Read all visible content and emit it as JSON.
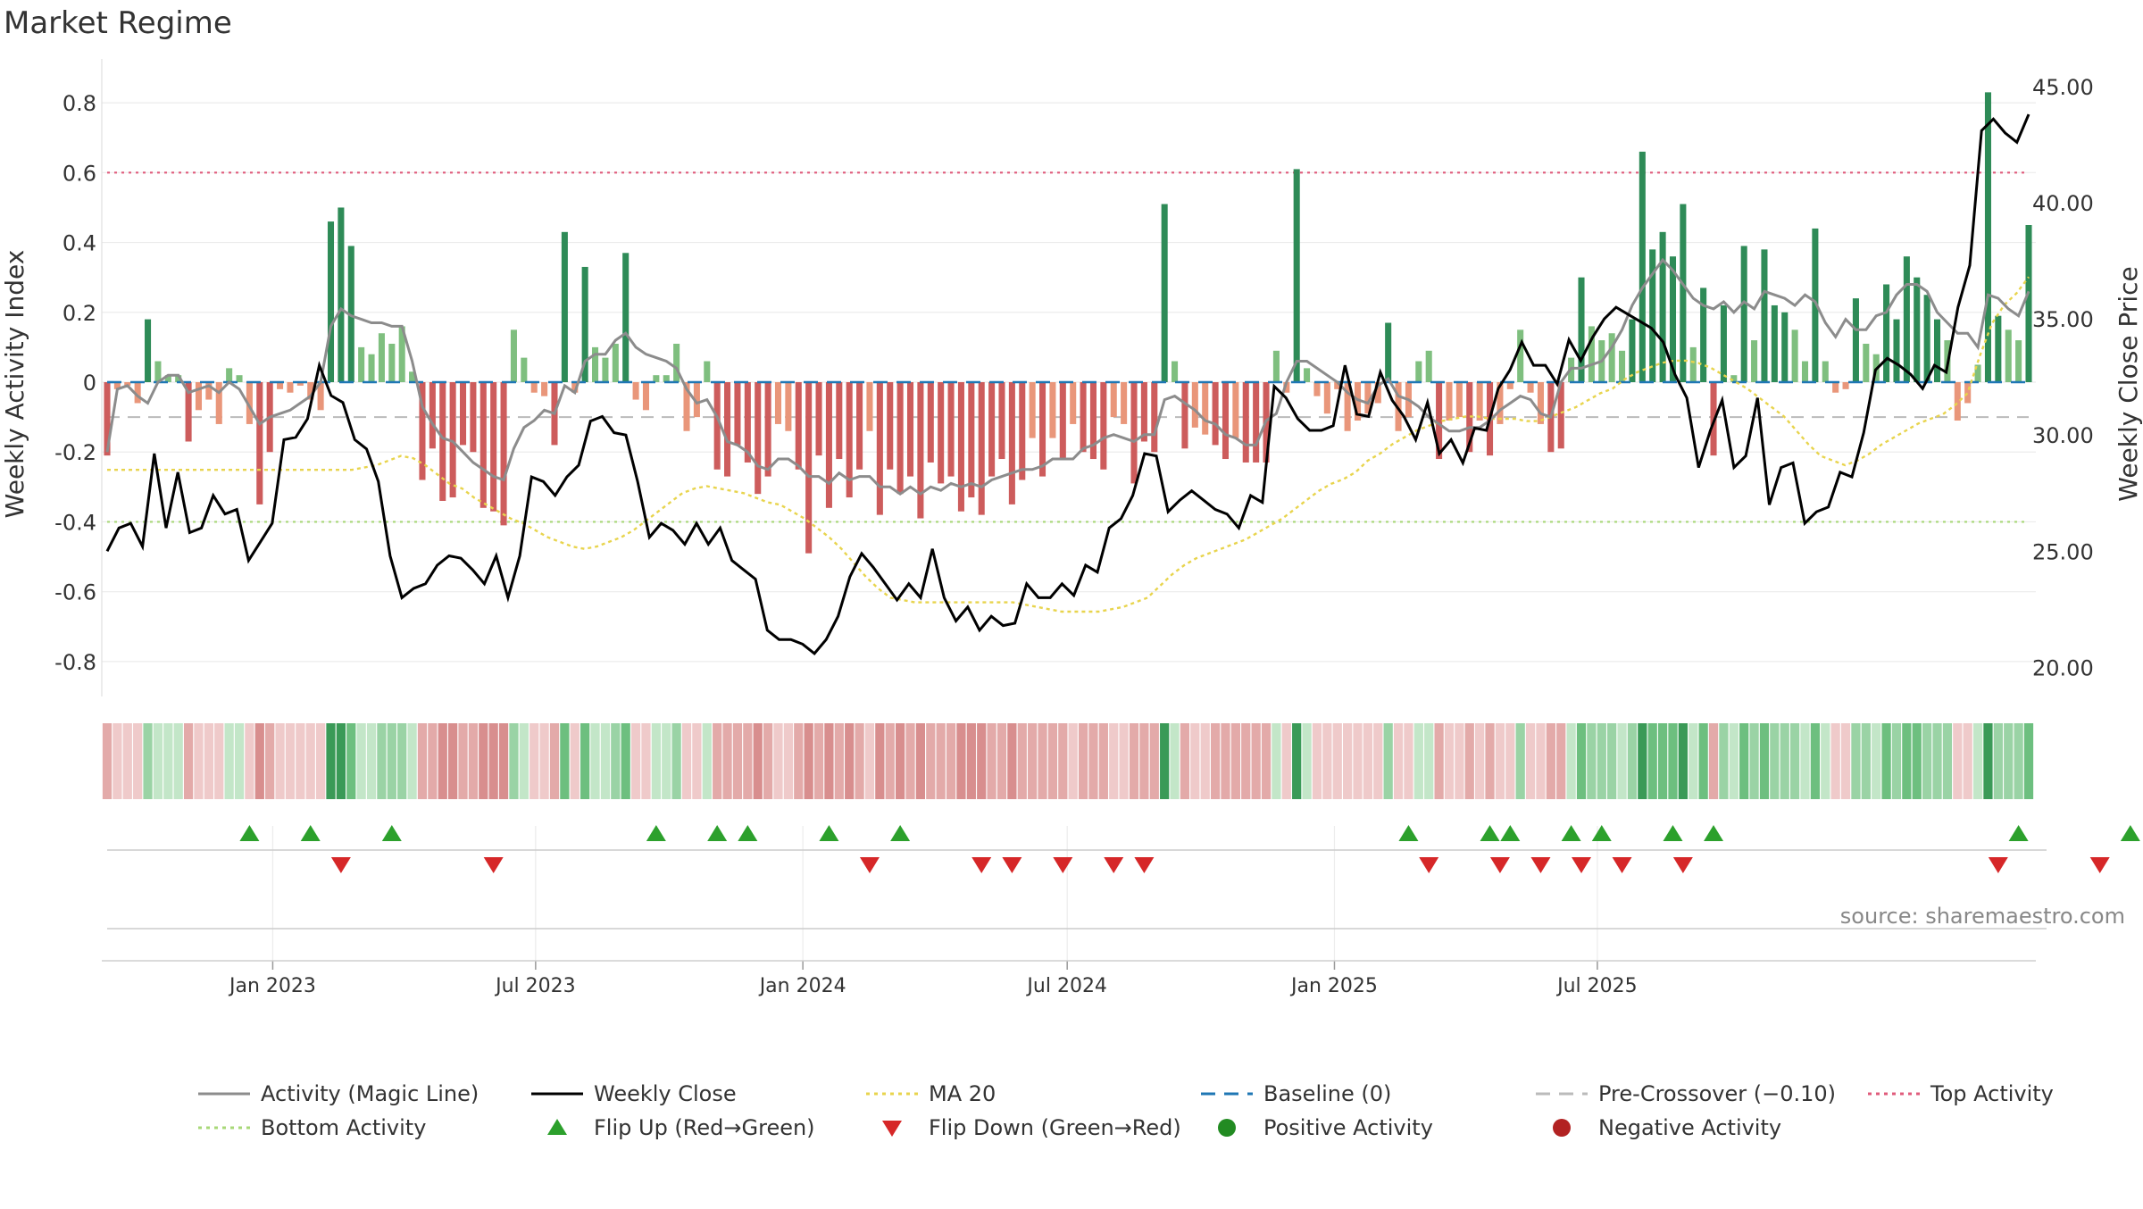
{
  "title": "Market Regime",
  "source": "source: sharemaestro.com",
  "colors": {
    "posDark": "#2e8b57",
    "posLight": "#7fbf7f",
    "negDark": "#cd5c5c",
    "negLight": "#e9967a",
    "magic": "#8c8c8c",
    "close": "#000000",
    "ma": "#e8d44d",
    "baseline": "#1f77b4",
    "precross": "#bbbbbb",
    "top": "#e05c7c",
    "bottom": "#a8d878",
    "flipUp": "#2ca02c",
    "flipDown": "#d62728",
    "posDot": "#228b22",
    "negDot": "#b22222"
  },
  "chart_data": {
    "type": "bar",
    "x_start": "2022-09-09",
    "x_step_days": 7,
    "left_axis": {
      "label": "Weekly Activity Index",
      "ylim": [
        -0.9,
        0.9
      ],
      "ticks": [
        -0.8,
        -0.6,
        -0.4,
        -0.2,
        0,
        0.2,
        0.4,
        0.6,
        0.8
      ]
    },
    "right_axis": {
      "label": "Weekly Close Price",
      "ylim": [
        18.75,
        45.8
      ],
      "ticks": [
        "20.00",
        "25.00",
        "30.00",
        "35.00",
        "40.00",
        "45.00"
      ]
    },
    "x_ticks": [
      {
        "label": "Jan 2023",
        "date": "2023-01-01"
      },
      {
        "label": "Jul 2023",
        "date": "2023-07-01"
      },
      {
        "label": "Jan 2024",
        "date": "2024-01-01"
      },
      {
        "label": "Jul 2024",
        "date": "2024-07-01"
      },
      {
        "label": "Jan 2025",
        "date": "2025-01-01"
      },
      {
        "label": "Jul 2025",
        "date": "2025-07-01"
      }
    ],
    "reference_lines": {
      "baseline": 0,
      "pre_crossover": -0.1,
      "top_activity": 0.6,
      "bottom_activity": -0.4
    },
    "series": [
      {
        "name": "Activity",
        "kind": "bar",
        "values": [
          -0.21,
          -0.02,
          -0.01,
          -0.06,
          0.18,
          0.06,
          0.02,
          0.02,
          -0.17,
          -0.08,
          -0.05,
          -0.12,
          0.04,
          0.02,
          -0.12,
          -0.35,
          -0.2,
          -0.02,
          -0.03,
          -0.01,
          -0.05,
          -0.08,
          0.46,
          0.5,
          0.39,
          0.1,
          0.08,
          0.14,
          0.11,
          0.16,
          0.03,
          -0.28,
          -0.19,
          -0.34,
          -0.33,
          -0.18,
          -0.2,
          -0.36,
          -0.37,
          -0.41,
          0.15,
          0.07,
          -0.03,
          -0.04,
          -0.18,
          0.43,
          -0.03,
          0.33,
          0.1,
          0.07,
          0.11,
          0.37,
          -0.05,
          -0.08,
          0.02,
          0.02,
          0.11,
          -0.14,
          -0.1,
          0.06,
          -0.25,
          -0.27,
          -0.18,
          -0.23,
          -0.32,
          -0.27,
          -0.12,
          -0.14,
          -0.25,
          -0.49,
          -0.21,
          -0.36,
          -0.22,
          -0.33,
          -0.25,
          -0.14,
          -0.38,
          -0.25,
          -0.32,
          -0.27,
          -0.39,
          -0.23,
          -0.29,
          -0.27,
          -0.37,
          -0.33,
          -0.38,
          -0.27,
          -0.22,
          -0.35,
          -0.28,
          -0.16,
          -0.27,
          -0.16,
          -0.22,
          -0.12,
          -0.2,
          -0.22,
          -0.25,
          -0.1,
          -0.12,
          -0.29,
          -0.17,
          -0.2,
          0.51,
          0.06,
          -0.19,
          -0.13,
          -0.15,
          -0.18,
          -0.22,
          -0.16,
          -0.23,
          -0.23,
          -0.23,
          0.09,
          -0.03,
          0.61,
          0.04,
          -0.04,
          -0.09,
          -0.02,
          -0.14,
          -0.11,
          -0.09,
          -0.06,
          0.17,
          -0.14,
          -0.1,
          0.06,
          0.09,
          -0.22,
          -0.11,
          -0.1,
          -0.2,
          -0.11,
          -0.21,
          -0.12,
          -0.02,
          0.15,
          -0.03,
          -0.12,
          -0.2,
          -0.19,
          0.07,
          0.3,
          0.16,
          0.12,
          0.14,
          0.09,
          0.18,
          0.66,
          0.38,
          0.43,
          0.36,
          0.51,
          0.1,
          0.27,
          -0.21,
          0.22,
          0.02,
          0.39,
          0.12,
          0.38,
          0.22,
          0.2,
          0.15,
          0.06,
          0.44,
          0.06,
          -0.03,
          -0.02,
          0.24,
          0.11,
          0.08,
          0.28,
          0.18,
          0.36,
          0.3,
          0.25,
          0.18,
          0.12,
          -0.11,
          -0.06,
          0.05,
          0.83,
          0.19,
          0.15,
          0.12,
          0.45
        ]
      },
      {
        "name": "Activity (Magic Line)",
        "kind": "line",
        "values": [
          -0.2,
          -0.02,
          -0.01,
          -0.04,
          -0.06,
          0.0,
          0.02,
          0.02,
          -0.03,
          -0.02,
          -0.01,
          -0.03,
          0.0,
          -0.02,
          -0.07,
          -0.12,
          -0.1,
          -0.09,
          -0.08,
          -0.06,
          -0.04,
          0.0,
          0.16,
          0.21,
          0.19,
          0.18,
          0.17,
          0.17,
          0.16,
          0.16,
          0.06,
          -0.07,
          -0.12,
          -0.16,
          -0.17,
          -0.2,
          -0.23,
          -0.25,
          -0.27,
          -0.28,
          -0.19,
          -0.13,
          -0.11,
          -0.08,
          -0.09,
          -0.01,
          -0.03,
          0.06,
          0.08,
          0.08,
          0.12,
          0.14,
          0.1,
          0.08,
          0.07,
          0.06,
          0.04,
          -0.02,
          -0.06,
          -0.05,
          -0.1,
          -0.17,
          -0.18,
          -0.2,
          -0.24,
          -0.25,
          -0.22,
          -0.22,
          -0.24,
          -0.27,
          -0.27,
          -0.29,
          -0.26,
          -0.28,
          -0.27,
          -0.27,
          -0.3,
          -0.3,
          -0.32,
          -0.3,
          -0.32,
          -0.3,
          -0.31,
          -0.29,
          -0.3,
          -0.29,
          -0.3,
          -0.28,
          -0.27,
          -0.26,
          -0.25,
          -0.25,
          -0.24,
          -0.22,
          -0.22,
          -0.22,
          -0.19,
          -0.18,
          -0.16,
          -0.15,
          -0.16,
          -0.17,
          -0.15,
          -0.15,
          -0.05,
          -0.04,
          -0.06,
          -0.08,
          -0.11,
          -0.12,
          -0.15,
          -0.16,
          -0.18,
          -0.18,
          -0.11,
          -0.09,
          0.0,
          0.06,
          0.06,
          0.04,
          0.02,
          0.0,
          -0.03,
          -0.05,
          -0.06,
          -0.01,
          0.01,
          -0.04,
          -0.05,
          -0.07,
          -0.1,
          -0.12,
          -0.14,
          -0.14,
          -0.13,
          -0.13,
          -0.11,
          -0.08,
          -0.06,
          -0.04,
          -0.05,
          -0.09,
          -0.1,
          0.0,
          0.04,
          0.04,
          0.05,
          0.06,
          0.1,
          0.15,
          0.22,
          0.27,
          0.31,
          0.35,
          0.32,
          0.28,
          0.24,
          0.22,
          0.21,
          0.23,
          0.2,
          0.23,
          0.21,
          0.26,
          0.25,
          0.24,
          0.22,
          0.25,
          0.23,
          0.17,
          0.13,
          0.18,
          0.15,
          0.15,
          0.19,
          0.2,
          0.25,
          0.28,
          0.28,
          0.26,
          0.2,
          0.17,
          0.14,
          0.14,
          0.1,
          0.25,
          0.24,
          0.21,
          0.19,
          0.26
        ]
      },
      {
        "name": "Weekly Close",
        "kind": "line",
        "axis": "right",
        "values": [
          25.0,
          26.0,
          26.2,
          25.2,
          29.2,
          26.0,
          28.4,
          25.8,
          26.0,
          27.4,
          26.6,
          26.8,
          24.6,
          25.4,
          26.2,
          29.8,
          29.9,
          30.7,
          33.0,
          31.7,
          31.4,
          29.8,
          29.4,
          28.0,
          24.8,
          23.0,
          23.4,
          23.6,
          24.4,
          24.8,
          24.7,
          24.2,
          23.6,
          24.8,
          23.0,
          24.8,
          28.2,
          28.0,
          27.4,
          28.2,
          28.7,
          30.6,
          30.8,
          30.1,
          30.0,
          28.0,
          25.6,
          26.2,
          25.9,
          25.3,
          26.2,
          25.3,
          26.0,
          24.6,
          24.2,
          23.8,
          21.6,
          21.2,
          21.2,
          21.0,
          20.6,
          21.2,
          22.2,
          23.9,
          24.9,
          24.3,
          23.6,
          22.9,
          23.6,
          23.0,
          25.1,
          23.0,
          22.0,
          22.6,
          21.6,
          22.2,
          21.8,
          21.9,
          23.6,
          23.0,
          23.0,
          23.6,
          23.1,
          24.4,
          24.1,
          26.0,
          26.4,
          27.4,
          29.2,
          29.1,
          26.7,
          27.2,
          27.6,
          27.2,
          26.8,
          26.6,
          26.0,
          27.4,
          27.1,
          32.1,
          31.6,
          30.7,
          30.2,
          30.2,
          30.4,
          33.0,
          30.9,
          30.8,
          32.7,
          31.5,
          30.8,
          29.8,
          31.4,
          29.2,
          29.8,
          28.8,
          30.3,
          30.2,
          32.0,
          32.8,
          34.0,
          33.0,
          33.0,
          32.2,
          34.1,
          33.2,
          34.2,
          35.0,
          35.5,
          35.2,
          34.9,
          34.6,
          34.0,
          32.6,
          31.6,
          28.6,
          30.2,
          31.5,
          28.6,
          29.1,
          31.6,
          27.0,
          28.6,
          28.8,
          26.2,
          26.7,
          26.9,
          28.4,
          28.2,
          30.1,
          32.8,
          33.3,
          33.0,
          32.6,
          32.0,
          33.0,
          32.7,
          35.5,
          37.3,
          43.1,
          43.6,
          43.0,
          42.6,
          43.8
        ]
      },
      {
        "name": "MA 20",
        "kind": "line",
        "axis": "right",
        "values": [
          28.5,
          28.5,
          28.5,
          28.5,
          28.5,
          28.5,
          28.5,
          28.5,
          28.5,
          28.5,
          28.5,
          28.5,
          28.5,
          28.5,
          28.5,
          28.5,
          28.5,
          28.5,
          28.5,
          28.5,
          28.5,
          28.6,
          28.7,
          28.9,
          29.1,
          29.0,
          28.7,
          28.3,
          27.9,
          27.7,
          27.3,
          27.0,
          26.7,
          26.4,
          26.2,
          25.9,
          25.6,
          25.4,
          25.2,
          25.1,
          25.2,
          25.4,
          25.6,
          25.9,
          26.3,
          26.7,
          27.1,
          27.5,
          27.7,
          27.8,
          27.7,
          27.6,
          27.5,
          27.3,
          27.1,
          27.0,
          26.7,
          26.4,
          26.0,
          25.6,
          25.1,
          24.5,
          23.9,
          23.4,
          23.0,
          22.9,
          22.8,
          22.8,
          22.8,
          22.8,
          22.8,
          22.8,
          22.8,
          22.8,
          22.8,
          22.7,
          22.6,
          22.5,
          22.4,
          22.4,
          22.4,
          22.4,
          22.5,
          22.6,
          22.8,
          23.0,
          23.5,
          24.0,
          24.4,
          24.7,
          24.9,
          25.1,
          25.3,
          25.5,
          25.8,
          26.1,
          26.4,
          26.8,
          27.2,
          27.6,
          27.9,
          28.1,
          28.4,
          28.9,
          29.2,
          29.6,
          29.9,
          30.2,
          30.4,
          30.6,
          30.7,
          30.8,
          30.8,
          30.7,
          30.7,
          30.7,
          30.6,
          30.6,
          30.8,
          31.0,
          31.2,
          31.5,
          31.8,
          32.0,
          32.4,
          32.7,
          32.9,
          33.1,
          33.2,
          33.2,
          33.1,
          32.9,
          32.6,
          32.3,
          32.0,
          31.6,
          31.2,
          30.8,
          30.2,
          29.6,
          29.1,
          28.9,
          28.7,
          28.9,
          29.2,
          29.6,
          29.9,
          30.2,
          30.5,
          30.7,
          30.9,
          31.3,
          31.8,
          33.4,
          34.8,
          35.6,
          36.1,
          36.8
        ]
      }
    ],
    "flip_up_indices": [
      14,
      20,
      28,
      54,
      60,
      63,
      71,
      78,
      128,
      136,
      138,
      144,
      147,
      154,
      158,
      188,
      199
    ],
    "flip_down_indices": [
      23,
      38,
      75,
      86,
      89,
      94,
      99,
      102,
      130,
      137,
      141,
      145,
      149,
      155,
      186,
      196
    ]
  },
  "legend": {
    "items": [
      {
        "label": "Activity (Magic Line)",
        "type": "line",
        "color": "#8c8c8c"
      },
      {
        "label": "Weekly Close",
        "type": "line",
        "color": "#000000"
      },
      {
        "label": "MA 20",
        "type": "dotted",
        "color": "#e8d44d"
      },
      {
        "label": "Baseline (0)",
        "type": "dashed",
        "color": "#1f77b4"
      },
      {
        "label": "Pre-Crossover (−0.10)",
        "type": "dashed",
        "color": "#bbbbbb"
      },
      {
        "label": "Top Activity",
        "type": "dotted",
        "color": "#e05c7c"
      },
      {
        "label": "Bottom Activity",
        "type": "dotted",
        "color": "#a8d878"
      },
      {
        "label": "Flip Up (Red→Green)",
        "type": "tri-up",
        "color": "#2ca02c"
      },
      {
        "label": "Flip Down (Green→Red)",
        "type": "tri-down",
        "color": "#d62728"
      },
      {
        "label": "Positive Activity",
        "type": "dot",
        "color": "#228b22"
      },
      {
        "label": "Negative Activity",
        "type": "dot",
        "color": "#b22222"
      }
    ]
  }
}
